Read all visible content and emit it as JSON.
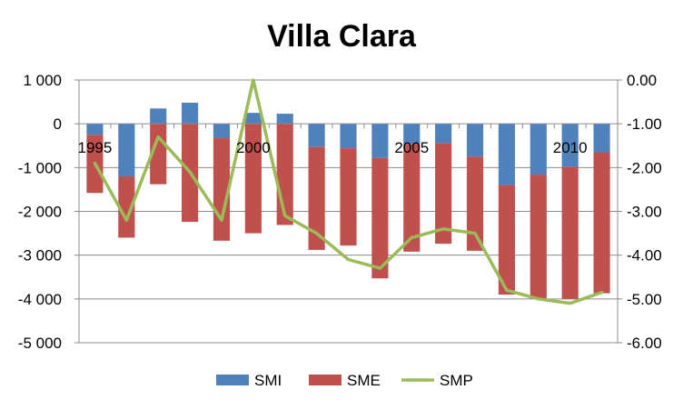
{
  "chart_data": {
    "type": "bar",
    "title": "Villa Clara",
    "x": [
      1995,
      1996,
      1997,
      1998,
      1999,
      2000,
      2001,
      2002,
      2003,
      2004,
      2005,
      2006,
      2007,
      2008,
      2009,
      2010,
      2011
    ],
    "x_tick_labels": [
      "1995",
      "2000",
      "2005",
      "2010"
    ],
    "stacked": true,
    "y_left": {
      "ylim": [
        -5000,
        1000
      ],
      "ticks": [
        1000,
        0,
        -1000,
        -2000,
        -3000,
        -4000,
        -5000
      ],
      "tick_labels": [
        "1 000",
        "0",
        "-1 000",
        "-2 000",
        "-3 000",
        "-4 000",
        "-5 000"
      ]
    },
    "y_right": {
      "ylim": [
        -6.0,
        0.0
      ],
      "ticks": [
        0,
        -1,
        -2,
        -3,
        -4,
        -5,
        -6
      ],
      "tick_labels": [
        "0.00",
        "-1.00",
        "-2.00",
        "-3.00",
        "-4.00",
        "-5.00",
        "-6.00"
      ]
    },
    "series": [
      {
        "name": "SMI",
        "kind": "bar",
        "axis": "left",
        "color": "#4F81BD",
        "values": [
          -250,
          -1200,
          350,
          480,
          -330,
          250,
          230,
          -530,
          -560,
          -780,
          -460,
          -440,
          -750,
          -1400,
          -1160,
          -980,
          -650
        ]
      },
      {
        "name": "SME",
        "kind": "bar",
        "axis": "left",
        "color": "#C0504D",
        "values": [
          -1330,
          -1400,
          -1380,
          -2240,
          -2340,
          -2500,
          -2310,
          -2350,
          -2220,
          -2750,
          -2460,
          -2300,
          -2150,
          -2500,
          -2840,
          -3020,
          -3220
        ]
      },
      {
        "name": "SMP",
        "kind": "line",
        "axis": "right",
        "color": "#9BBB59",
        "values": [
          -1.9,
          -3.2,
          -1.3,
          -2.1,
          -3.2,
          0.0,
          -3.1,
          -3.5,
          -4.1,
          -4.3,
          -3.6,
          -3.4,
          -3.5,
          -4.8,
          -5.0,
          -5.1,
          -4.85
        ]
      }
    ],
    "legend_position": "bottom",
    "grid": true
  }
}
